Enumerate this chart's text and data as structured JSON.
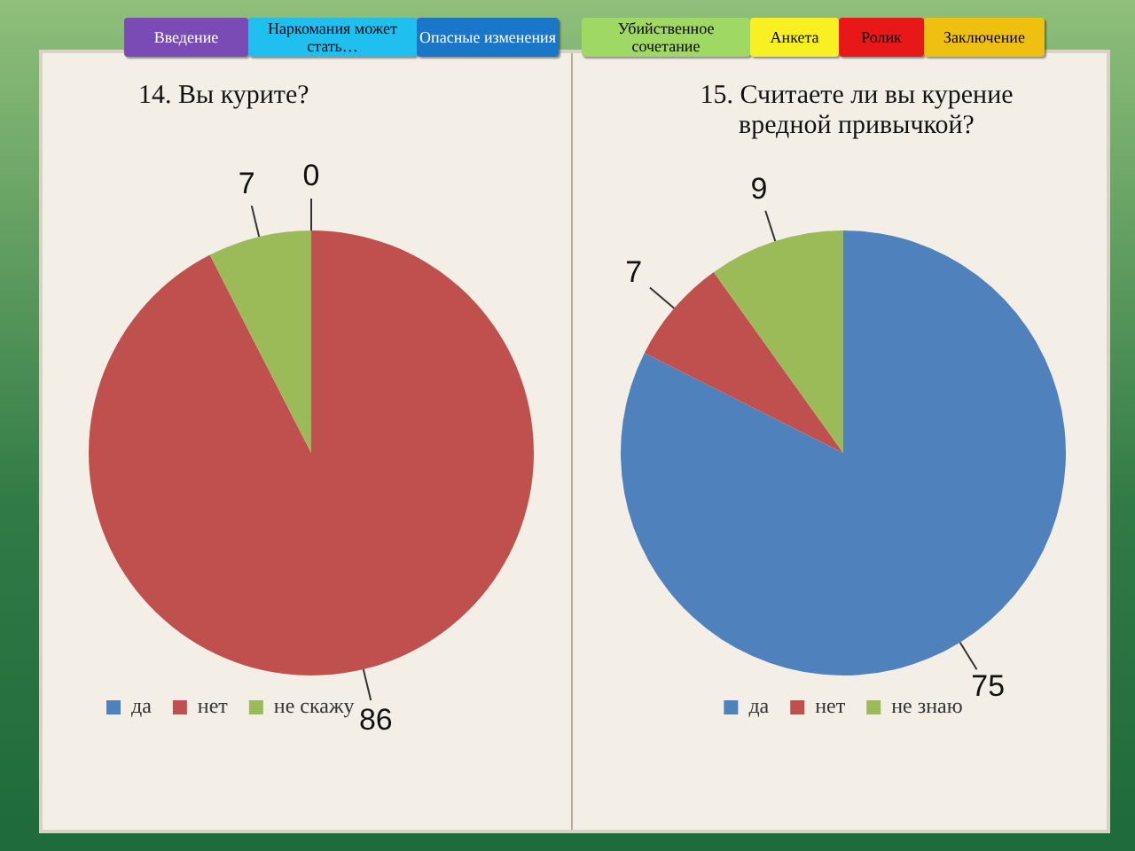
{
  "chart_data": [
    {
      "type": "pie",
      "title": "14. Вы курите?",
      "categories": [
        "да",
        "нет",
        "не скажу"
      ],
      "values": [
        0,
        86,
        7
      ],
      "value_labels": [
        "0",
        "86",
        "7"
      ],
      "colors": [
        "#4f81bd",
        "#c0504d",
        "#9bbb59"
      ],
      "legend": "bottom",
      "annotations": [
        "Введение",
        "Наркомания может стать…",
        "Опасные изменения",
        "Убийственное сочетание",
        "Анкета",
        "Ролик",
        "Заключение"
      ]
    },
    {
      "type": "pie",
      "title": "15. Считаете ли вы курение вредной привычкой?",
      "categories": [
        "да",
        "нет",
        "не знаю"
      ],
      "values": [
        75,
        7,
        9
      ],
      "value_labels": [
        "75",
        "7",
        "9"
      ],
      "colors": [
        "#4f81bd",
        "#c0504d",
        "#9bbb59"
      ],
      "legend": "bottom"
    }
  ]
}
